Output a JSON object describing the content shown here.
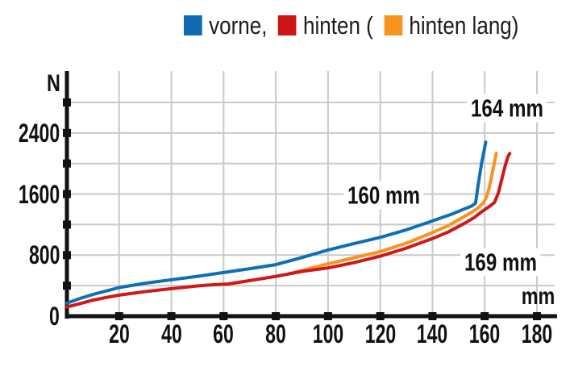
{
  "legend": {
    "items": [
      {
        "id": "vorne",
        "label": "vorne,",
        "color": "#0e6bb0"
      },
      {
        "id": "hinten",
        "label": "hinten (",
        "color": "#cc1517"
      },
      {
        "id": "hinten-lang",
        "label": "hinten lang)",
        "color": "#f7941e"
      }
    ]
  },
  "colors": {
    "grid": "#c9c9c9",
    "axis": "#121212",
    "text": "#111111"
  },
  "chart_data": {
    "type": "line",
    "title": "",
    "xlabel": "mm",
    "ylabel": "N",
    "xlim": [
      0,
      188
    ],
    "ylim": [
      0,
      3220
    ],
    "grid": true,
    "legend_position": "top",
    "x_ticks": [
      20,
      40,
      60,
      80,
      100,
      120,
      140,
      160,
      180
    ],
    "y_ticks": [
      400,
      800,
      1200,
      1600,
      2000,
      2400,
      2800
    ],
    "y_tick_labels": [
      {
        "value": 0,
        "label": "0"
      },
      {
        "value": 800,
        "label": "800"
      },
      {
        "value": 1600,
        "label": "1600"
      },
      {
        "value": 2400,
        "label": "2400"
      }
    ],
    "series": [
      {
        "id": "vorne",
        "name": "vorne",
        "color": "#0f6fb4",
        "points": [
          [
            0,
            170
          ],
          [
            5,
            232
          ],
          [
            10,
            285
          ],
          [
            15,
            330
          ],
          [
            20,
            375
          ],
          [
            30,
            432
          ],
          [
            40,
            478
          ],
          [
            50,
            522
          ],
          [
            60,
            572
          ],
          [
            70,
            622
          ],
          [
            80,
            675
          ],
          [
            90,
            768
          ],
          [
            100,
            868
          ],
          [
            110,
            952
          ],
          [
            120,
            1032
          ],
          [
            130,
            1132
          ],
          [
            140,
            1248
          ],
          [
            148,
            1345
          ],
          [
            152,
            1402
          ],
          [
            155,
            1442
          ],
          [
            156.5,
            1480
          ],
          [
            157.5,
            1720
          ],
          [
            158.8,
            2000
          ],
          [
            159.7,
            2160
          ],
          [
            160.4,
            2280
          ]
        ]
      },
      {
        "id": "hinten",
        "name": "hinten",
        "color": "#d01818",
        "points": [
          [
            0,
            120
          ],
          [
            5,
            165
          ],
          [
            10,
            210
          ],
          [
            15,
            245
          ],
          [
            20,
            276
          ],
          [
            30,
            322
          ],
          [
            40,
            360
          ],
          [
            50,
            396
          ],
          [
            55,
            410
          ],
          [
            62,
            423
          ],
          [
            70,
            466
          ],
          [
            80,
            521
          ],
          [
            90,
            586
          ],
          [
            100,
            632
          ],
          [
            110,
            702
          ],
          [
            120,
            786
          ],
          [
            130,
            892
          ],
          [
            140,
            1016
          ],
          [
            146,
            1102
          ],
          [
            152,
            1212
          ],
          [
            156,
            1292
          ],
          [
            159,
            1372
          ],
          [
            162,
            1442
          ],
          [
            163.8,
            1492
          ],
          [
            165.2,
            1612
          ],
          [
            166.6,
            1800
          ],
          [
            167.8,
            1965
          ],
          [
            168.9,
            2090
          ],
          [
            169.6,
            2132
          ]
        ]
      },
      {
        "id": "hinten-lang",
        "name": "hinten lang",
        "color": "#f7941e",
        "points": [
          [
            85,
            554
          ],
          [
            92,
            616
          ],
          [
            100,
            686
          ],
          [
            110,
            766
          ],
          [
            120,
            846
          ],
          [
            130,
            956
          ],
          [
            140,
            1096
          ],
          [
            146,
            1186
          ],
          [
            152,
            1302
          ],
          [
            155,
            1360
          ],
          [
            157.5,
            1420
          ],
          [
            159.3,
            1478
          ],
          [
            160.5,
            1545
          ],
          [
            161.6,
            1665
          ],
          [
            162.7,
            1840
          ],
          [
            163.7,
            2010
          ],
          [
            164.4,
            2132
          ]
        ]
      }
    ],
    "annotations": [
      {
        "text": "164 mm",
        "mm": 168.6,
        "n": 2730
      },
      {
        "text": "160 mm",
        "mm": 121.4,
        "n": 1585
      },
      {
        "text": "169 mm",
        "mm": 166.0,
        "n": 710
      }
    ]
  }
}
